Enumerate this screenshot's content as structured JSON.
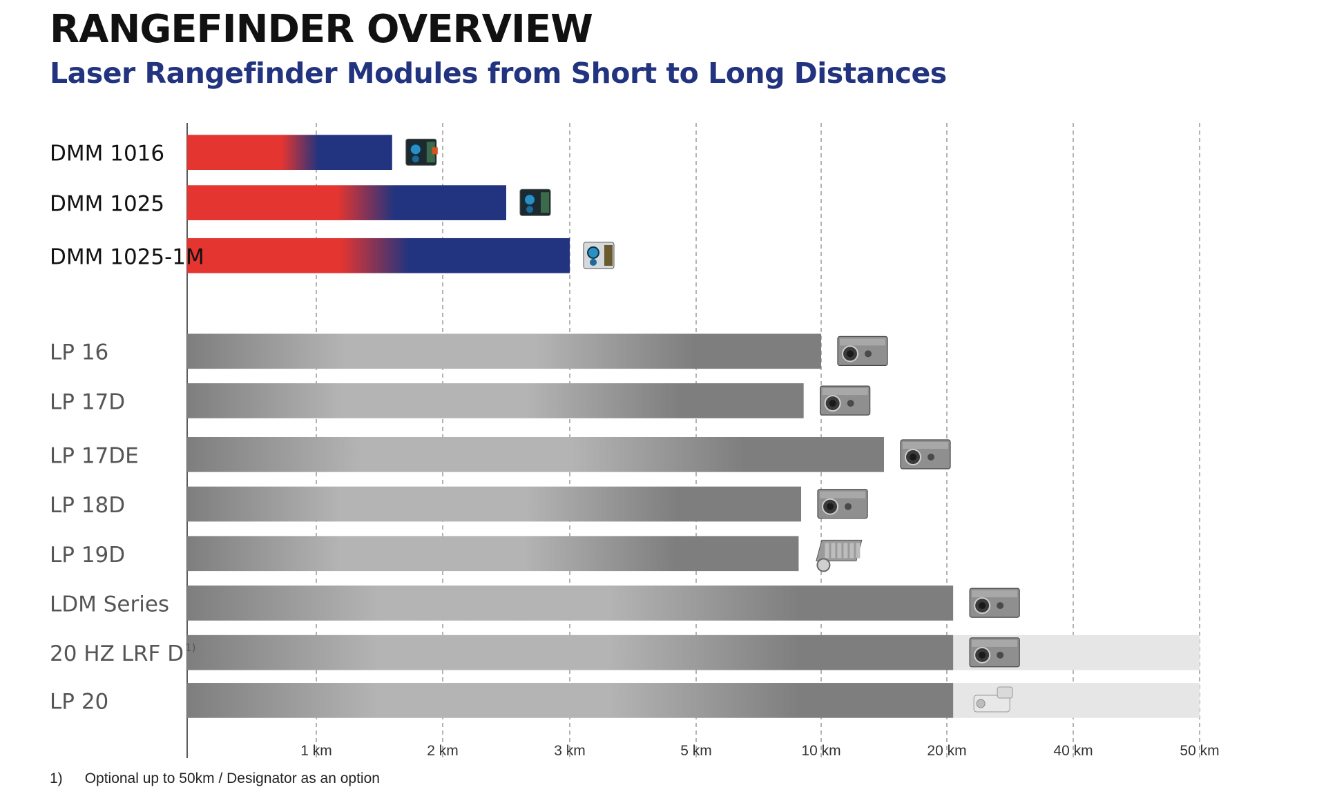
{
  "chart_data": {
    "type": "bar",
    "orientation": "horizontal",
    "title": "RANGEFINDER OVERVIEW",
    "subtitle": "Laser Rangefinder Modules from Short to Long Distances",
    "x_scale": "non-linear (ticks equally spaced)",
    "x_ticks": [
      {
        "value": 1,
        "label": "1 km"
      },
      {
        "value": 2,
        "label": "2 km"
      },
      {
        "value": 3,
        "label": "3 km"
      },
      {
        "value": 5,
        "label": "5 km"
      },
      {
        "value": 10,
        "label": "10 km"
      },
      {
        "value": 20,
        "label": "20 km"
      },
      {
        "value": 40,
        "label": "40 km"
      },
      {
        "value": 50,
        "label": "50 km"
      }
    ],
    "xlim": [
      0,
      50
    ],
    "grid": "vertical dashed lines at ticks",
    "groups": [
      {
        "name": "DMM",
        "style": "red-to-blue gradient",
        "colors": {
          "red": "#e53530",
          "blue": "#22347f"
        },
        "items": [
          {
            "label": "DMM 1016",
            "range_km": 1.6,
            "red_fraction": 0.56
          },
          {
            "label": "DMM 1025",
            "range_km": 2.5,
            "red_fraction": 0.57
          },
          {
            "label": "DMM 1025-1M",
            "range_km": 3.0,
            "red_fraction": 0.5
          }
        ]
      },
      {
        "name": "LP",
        "style": "grey gradient",
        "colors": {
          "light": "#b4b4b4",
          "dark": "#7e7e7e",
          "option": "#e6e6e6"
        },
        "items": [
          {
            "label": "LP 16",
            "range_km": 10.0
          },
          {
            "label": "LP 17D",
            "range_km": 9.3
          },
          {
            "label": "LP 17DE",
            "range_km": 15.0
          },
          {
            "label": "LP 18D",
            "range_km": 9.2
          },
          {
            "label": "LP 19D",
            "range_km": 9.1
          },
          {
            "label": "LDM Series",
            "range_km": 21.0
          },
          {
            "label": "20 HZ LRF D",
            "label_sup": "1)",
            "range_km": 21.0,
            "optional_range_km": 50
          },
          {
            "label": "LP 20",
            "range_km": 21.0,
            "optional_range_km": 50
          }
        ]
      }
    ],
    "footnote": {
      "marker": "1)",
      "text": "Optional up to 50km / Designator as an option"
    }
  }
}
